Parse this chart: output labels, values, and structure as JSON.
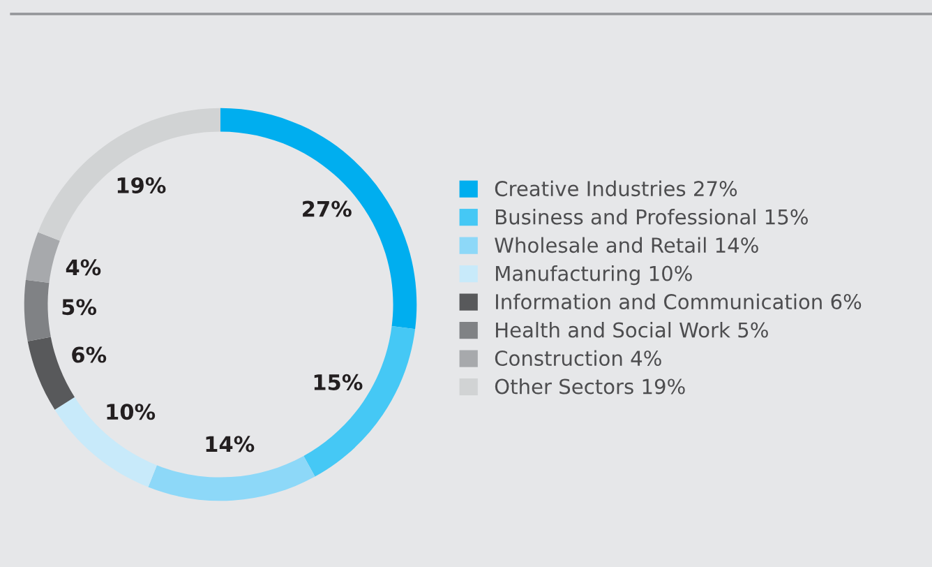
{
  "chart_data": {
    "type": "donut",
    "categories": [
      "Creative Industries 27%",
      "Business and Professional 15%",
      "Wholesale and Retail 14%",
      "Manufacturing 10%",
      "Information and Communication 6%",
      "Health and Social Work 5%",
      "Construction 4%",
      "Other Sectors 19%"
    ],
    "values": [
      27,
      15,
      14,
      10,
      6,
      5,
      4,
      19
    ],
    "value_labels": [
      "27%",
      "15%",
      "14%",
      "10%",
      "6%",
      "5%",
      "4%",
      "19%"
    ],
    "colors": [
      "#00aeef",
      "#45c8f5",
      "#8dd8f8",
      "#c8eafa",
      "#58595b",
      "#808285",
      "#a7a9ac",
      "#d1d3d4"
    ],
    "legend": "right"
  }
}
